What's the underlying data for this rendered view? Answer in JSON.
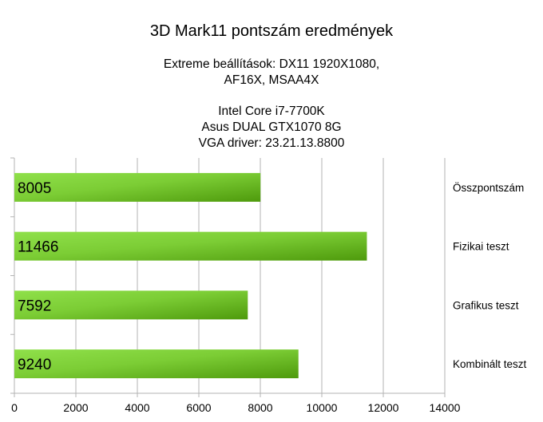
{
  "chart_data": {
    "type": "bar",
    "orientation": "horizontal",
    "title": "3D Mark11 pontszám eredmények",
    "subtitle_lines": [
      "Extreme beállítások: DX11 1920X1080,",
      "AF16X, MSAA4X",
      "",
      "Intel Core i7-7700K",
      "Asus DUAL GTX1070 8G",
      "VGA driver: 23.21.13.8800"
    ],
    "categories": [
      "Összpontszám",
      "Fizikai teszt",
      "Grafikus teszt",
      "Kombinált teszt"
    ],
    "values": [
      8005,
      11466,
      7592,
      9240
    ],
    "value_labels": [
      "8005",
      "11466",
      "7592",
      "9240"
    ],
    "xlim": [
      0,
      14000
    ],
    "xticks": [
      "0",
      "2000",
      "4000",
      "6000",
      "8000",
      "10000",
      "12000",
      "14000"
    ],
    "grid": true,
    "legend": "none",
    "colors": {
      "bar_light": "#8fe04a",
      "bar_dark": "#4e9a0c",
      "grid": "#b3b3b3"
    }
  }
}
